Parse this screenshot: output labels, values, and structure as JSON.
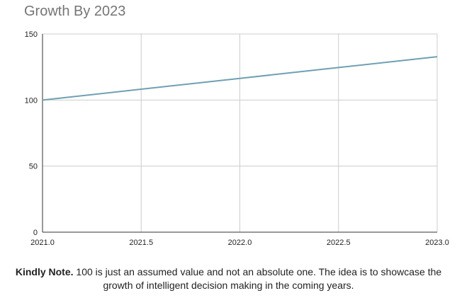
{
  "chart_data": {
    "type": "line",
    "title": "Growth By 2023",
    "xlabel": "",
    "ylabel": "",
    "x": [
      2021.0,
      2021.5,
      2022.0,
      2022.5,
      2023.0
    ],
    "series": [
      {
        "values": [
          100,
          108.2,
          116.4,
          124.6,
          132.8
        ],
        "color": "#6fa0b3"
      }
    ],
    "xlim": [
      2021.0,
      2023.0
    ],
    "ylim": [
      0,
      150
    ],
    "x_ticks": [
      "2021.0",
      "2021.5",
      "2022.0",
      "2022.5",
      "2023.0"
    ],
    "y_ticks": [
      "0",
      "50",
      "100",
      "150"
    ],
    "grid": true,
    "grid_color": "#cccccc",
    "axis_color": "#333333"
  },
  "note": {
    "bold": "Kindly Note.",
    "text": " 100 is just an assumed value and not an absolute one. The idea is to showcase the growth of intelligent decision making in the coming years."
  }
}
